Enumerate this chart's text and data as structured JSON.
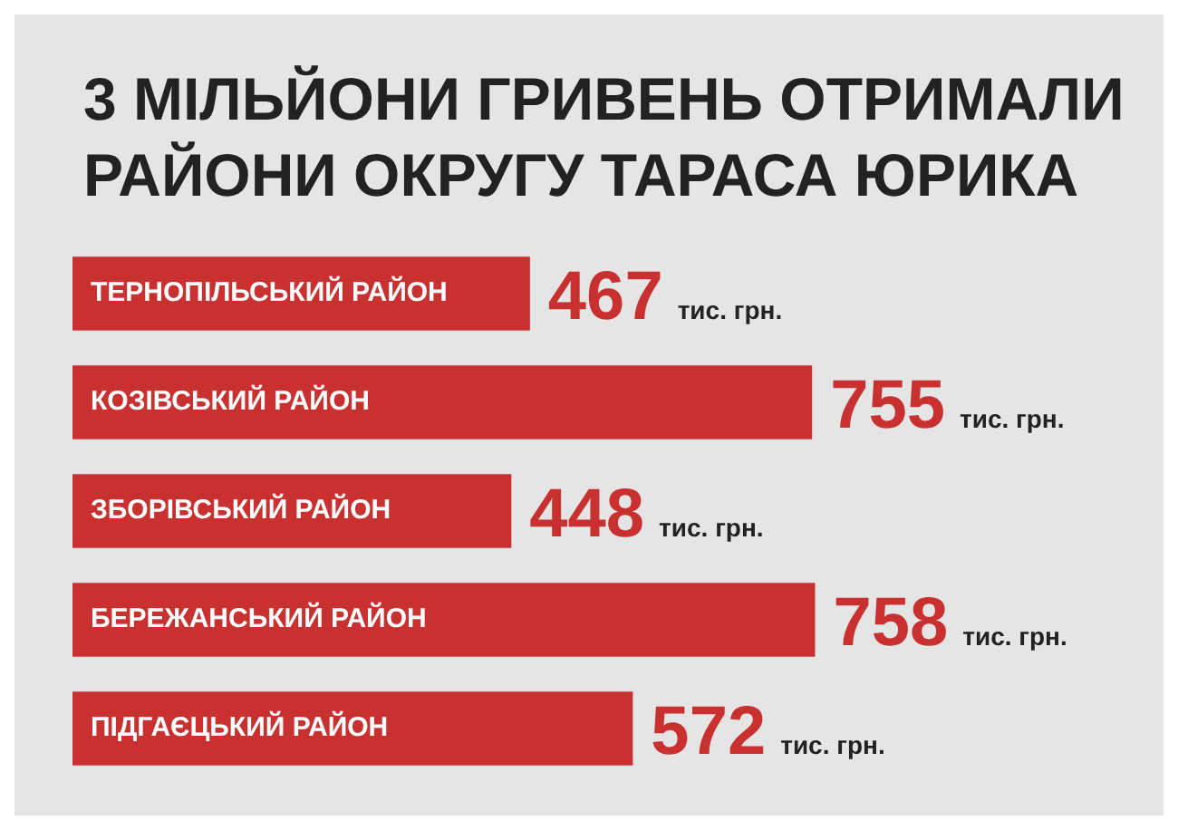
{
  "chart_data": {
    "type": "bar",
    "orientation": "horizontal",
    "title": "3 МІЛЬЙОНИ ГРИВЕНЬ ОТРИМАЛИ РАЙОНИ ОКРУГУ ТАРАСА ЮРИКА",
    "categories": [
      "ТЕРНОПІЛЬСЬКИЙ РАЙОН",
      "КОЗІВСЬКИЙ РАЙОН",
      "ЗБОРІВСЬКИЙ РАЙОН",
      "БЕРЕЖАНСЬКИЙ РАЙОН",
      "ПІДГАЄЦЬКИЙ РАЙОН"
    ],
    "values": [
      467,
      755,
      448,
      758,
      572
    ],
    "value_labels": [
      "467 тис. грн.",
      "755 тис. грн.",
      "448 тис. грн.",
      "758 тис. грн.",
      "572 тис. грн."
    ],
    "color": "#c8312f",
    "tick_labels": false,
    "grid": false,
    "legend": false
  }
}
